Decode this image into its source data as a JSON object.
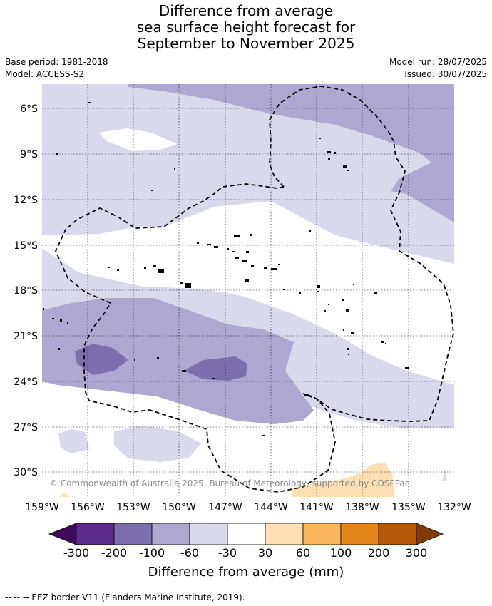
{
  "title_lines": [
    "Difference from average",
    "sea surface height forecast for",
    "September to November 2025"
  ],
  "meta": {
    "base_period": "Base period: 1981-2018",
    "model": "Model: ACCESS-S2",
    "model_run": "Model run: 28/07/2025",
    "issued": "Issued: 30/07/2025"
  },
  "map": {
    "lat_labels": [
      "6°S",
      "9°S",
      "12°S",
      "15°S",
      "18°S",
      "21°S",
      "24°S",
      "27°S",
      "30°S"
    ],
    "lon_labels": [
      "159°W",
      "156°W",
      "153°W",
      "150°W",
      "147°W",
      "144°W",
      "141°W",
      "138°W",
      "135°W",
      "132°W"
    ],
    "copyright": "© Commonwealth of Australia 2025, Bureau of Meteorology, supported by COSPPac",
    "grid_lines": "dotted"
  },
  "colorbar": {
    "tick_labels": [
      "-300",
      "-200",
      "-100",
      "-60",
      "-30",
      "30",
      "60",
      "100",
      "200",
      "300"
    ],
    "colors": [
      "#3f0a5a",
      "#5b2a8a",
      "#7d6fae",
      "#ada7d1",
      "#d8d9ea",
      "#ffffff",
      "#fedfb3",
      "#fbb55b",
      "#e5861c",
      "#b35807",
      "#7f3b08"
    ],
    "title": "Difference from average (mm)"
  },
  "footer": "-- -- -- EEZ border V11 (Flanders Marine Institute, 2019)."
}
